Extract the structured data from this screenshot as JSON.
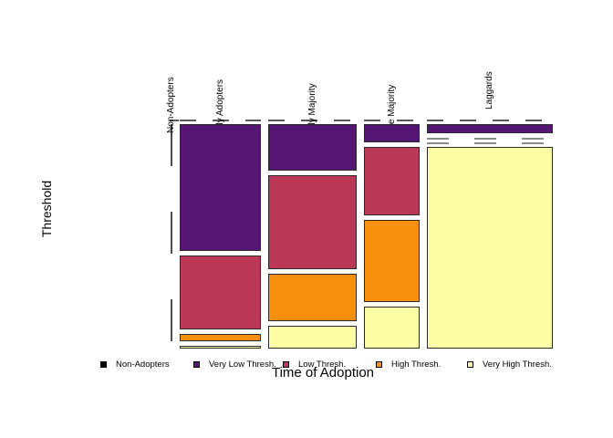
{
  "figure": {
    "background": "#ffffff",
    "border_color": "#2b2b2b",
    "zero_dash_color_top": "#5a5a5a",
    "zero_dash_color_mid": "#8a8a8a"
  },
  "chart_data": {
    "type": "mosaic",
    "title": "",
    "xlabel": "Time of Adoption",
    "ylabel": "Threshold",
    "x_categories": [
      "Non-Adopters",
      "Early Adopters",
      "Early Majority",
      "Late Majority",
      "Laggards"
    ],
    "y_categories": [
      "Non-Adopters",
      "Very Low Thresh.",
      "Low Thresh.",
      "High Thresh.",
      "Very High Thresh."
    ],
    "legend_position": "bottom",
    "grid": false,
    "columns": [
      {
        "label": "Non-Adopters",
        "width_share": 0.0,
        "cell_shares": [
          0,
          0,
          0,
          0,
          0
        ]
      },
      {
        "label": "Early Adopters",
        "width_share": 0.231,
        "cell_shares": [
          0,
          0.6,
          0.352,
          0.035,
          0.013
        ]
      },
      {
        "label": "Early Majority",
        "width_share": 0.252,
        "cell_shares": [
          0,
          0.222,
          0.448,
          0.226,
          0.104
        ]
      },
      {
        "label": "Late Majority",
        "width_share": 0.158,
        "cell_shares": [
          0,
          0.087,
          0.325,
          0.39,
          0.198
        ]
      },
      {
        "label": "Laggards",
        "width_share": 0.359,
        "cell_shares": [
          0,
          0.042,
          0,
          0,
          0.958
        ]
      }
    ],
    "colors": {
      "Non-Adopters": "#000000",
      "Very Low Thresh.": "#541573",
      "Low Thresh.": "#BB3956",
      "High Thresh.": "#F8900E",
      "Very High Thresh.": "#FBFDA4"
    },
    "legend": [
      {
        "label": "Non-Adopters",
        "color": "#000000"
      },
      {
        "label": "Very Low Thresh.",
        "color": "#541573"
      },
      {
        "label": "Low Thresh.",
        "color": "#BB3956"
      },
      {
        "label": "High Thresh.",
        "color": "#F8900E"
      },
      {
        "label": "Very High Thresh.",
        "color": "#FBFDA4"
      }
    ]
  }
}
